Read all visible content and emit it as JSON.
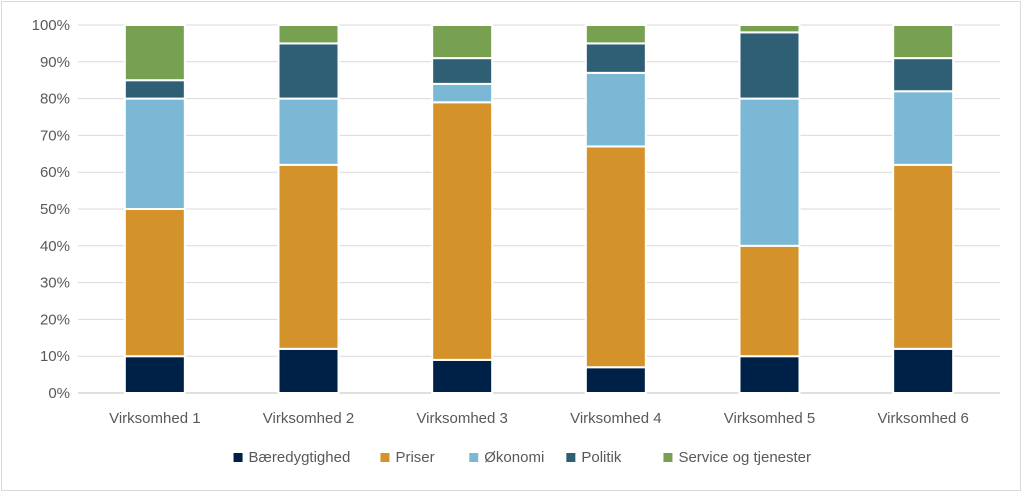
{
  "chart_data": {
    "type": "bar",
    "stacked": true,
    "percent": true,
    "categories": [
      "Virksomhed 1",
      "Virksomhed 2",
      "Virksomhed 3",
      "Virksomhed 4",
      "Virksomhed 5",
      "Virksomhed 6"
    ],
    "series": [
      {
        "name": "Bæredygtighed",
        "color": "#002147",
        "values": [
          10,
          12,
          9,
          7,
          10,
          12
        ]
      },
      {
        "name": "Priser",
        "color": "#d4922a",
        "values": [
          40,
          50,
          70,
          60,
          30,
          50
        ]
      },
      {
        "name": "Økonomi",
        "color": "#7ab8d6",
        "values": [
          30,
          18,
          5,
          20,
          40,
          20
        ]
      },
      {
        "name": "Politik",
        "color": "#2e5f75",
        "values": [
          5,
          15,
          7,
          8,
          18,
          9
        ]
      },
      {
        "name": "Service og tjenester",
        "color": "#77a050",
        "values": [
          15,
          5,
          9,
          5,
          2,
          9
        ]
      }
    ],
    "ylim": [
      0,
      100
    ],
    "yticks": [
      "0%",
      "10%",
      "20%",
      "30%",
      "40%",
      "50%",
      "60%",
      "70%",
      "80%",
      "90%",
      "100%"
    ],
    "grid": true,
    "legend": "bottom"
  }
}
